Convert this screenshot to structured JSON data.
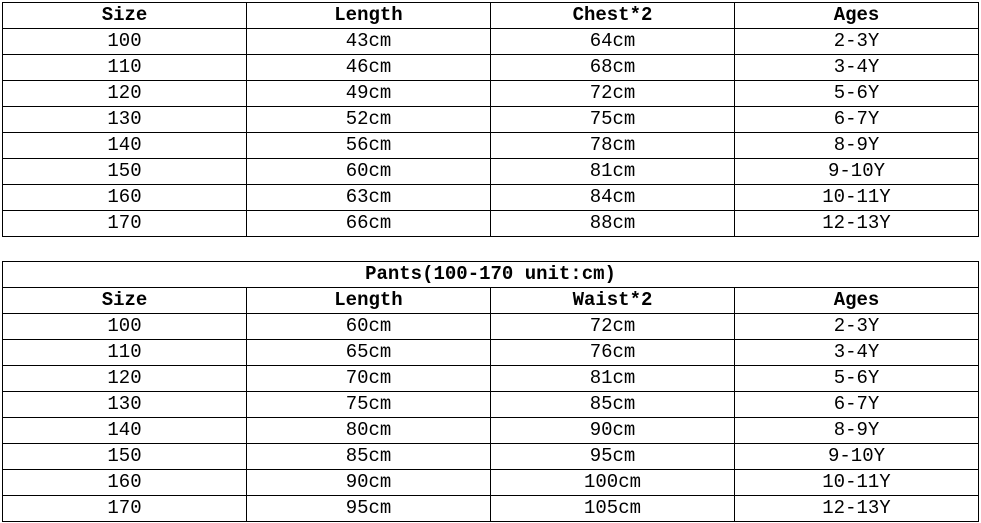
{
  "page": {
    "background_color": "#ffffff",
    "text_color": "#000000",
    "border_color": "#000000"
  },
  "chart_data": [
    {
      "type": "table",
      "name": "tops-size-chart",
      "title": "",
      "columns": [
        "Size",
        "Length",
        "Chest*2",
        "Ages"
      ],
      "rows": [
        [
          "100",
          "43cm",
          "64cm",
          "2-3Y"
        ],
        [
          "110",
          "46cm",
          "68cm",
          "3-4Y"
        ],
        [
          "120",
          "49cm",
          "72cm",
          "5-6Y"
        ],
        [
          "130",
          "52cm",
          "75cm",
          "6-7Y"
        ],
        [
          "140",
          "56cm",
          "78cm",
          "8-9Y"
        ],
        [
          "150",
          "60cm",
          "81cm",
          "9-10Y"
        ],
        [
          "160",
          "63cm",
          "84cm",
          "10-11Y"
        ],
        [
          "170",
          "66cm",
          "88cm",
          "12-13Y"
        ]
      ]
    },
    {
      "type": "table",
      "name": "pants-size-chart",
      "title": "Pants(100-170 unit:cm)",
      "columns": [
        "Size",
        "Length",
        "Waist*2",
        "Ages"
      ],
      "rows": [
        [
          "100",
          "60cm",
          "72cm",
          "2-3Y"
        ],
        [
          "110",
          "65cm",
          "76cm",
          "3-4Y"
        ],
        [
          "120",
          "70cm",
          "81cm",
          "5-6Y"
        ],
        [
          "130",
          "75cm",
          "85cm",
          "6-7Y"
        ],
        [
          "140",
          "80cm",
          "90cm",
          "8-9Y"
        ],
        [
          "150",
          "85cm",
          "95cm",
          "9-10Y"
        ],
        [
          "160",
          "90cm",
          "100cm",
          "10-11Y"
        ],
        [
          "170",
          "95cm",
          "105cm",
          "12-13Y"
        ]
      ]
    }
  ]
}
